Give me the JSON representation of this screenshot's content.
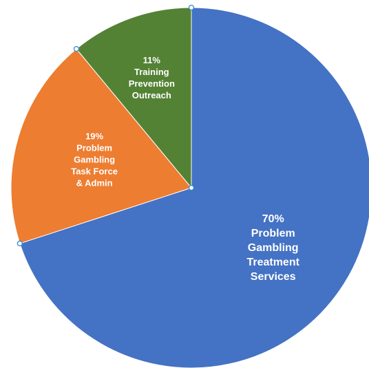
{
  "chart_data": {
    "type": "pie",
    "slices": [
      {
        "value": 70,
        "percent_label": "70%",
        "label_lines": [
          "Problem",
          "Gambling",
          "Treatment",
          "Services"
        ],
        "color": "#4472c4"
      },
      {
        "value": 19,
        "percent_label": "19%",
        "label_lines": [
          "Problem",
          "Gambling",
          "Task Force",
          "& Admin"
        ],
        "color": "#ed7d31"
      },
      {
        "value": 11,
        "percent_label": "11%",
        "label_lines": [
          "Training",
          "Prevention",
          "Outreach"
        ],
        "color": "#548235"
      }
    ],
    "start_angle_deg": 0,
    "direction": "clockwise",
    "legend": "none",
    "selection_handles": true
  }
}
